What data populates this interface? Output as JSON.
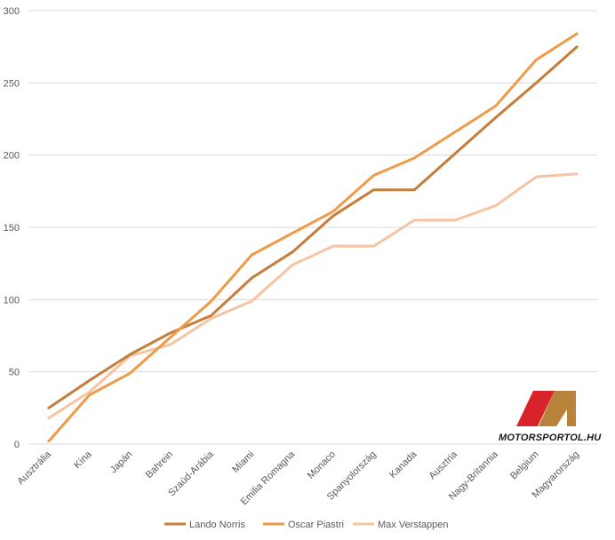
{
  "chart_data": {
    "type": "line",
    "title": "",
    "xlabel": "",
    "ylabel": "",
    "ylim": [
      0,
      300
    ],
    "yticks": [
      0,
      50,
      100,
      150,
      200,
      250,
      300
    ],
    "grid": "horizontal",
    "legend_position": "bottom",
    "categories": [
      "Ausztrália",
      "Kína",
      "Japán",
      "Bahrein",
      "Szaúd-Arábia",
      "Miami",
      "Emilia Romagna",
      "Monaco",
      "Spanyolország",
      "Kanada",
      "Ausztria",
      "Nagy-Britannia",
      "Belgium",
      "Magyarország"
    ],
    "series": [
      {
        "name": "Lando Norris",
        "color": "#C67D3B",
        "values": [
          25,
          44,
          62,
          77,
          89,
          115,
          133,
          158,
          176,
          176,
          201,
          226,
          250,
          275
        ]
      },
      {
        "name": "Oscar Piastri",
        "color": "#EE9B47",
        "values": [
          2,
          34,
          49,
          74,
          99,
          131,
          146,
          161,
          186,
          198,
          216,
          234,
          266,
          284
        ]
      },
      {
        "name": "Max Verstappen",
        "color": "#F5C4A2",
        "values": [
          18,
          36,
          61,
          69,
          87,
          99,
          124,
          137,
          137,
          155,
          155,
          165,
          185,
          187
        ]
      }
    ]
  },
  "watermark": {
    "text": "MOTORSPORTOL.HU",
    "red": "#D8232A",
    "gold": "#B8843C"
  }
}
